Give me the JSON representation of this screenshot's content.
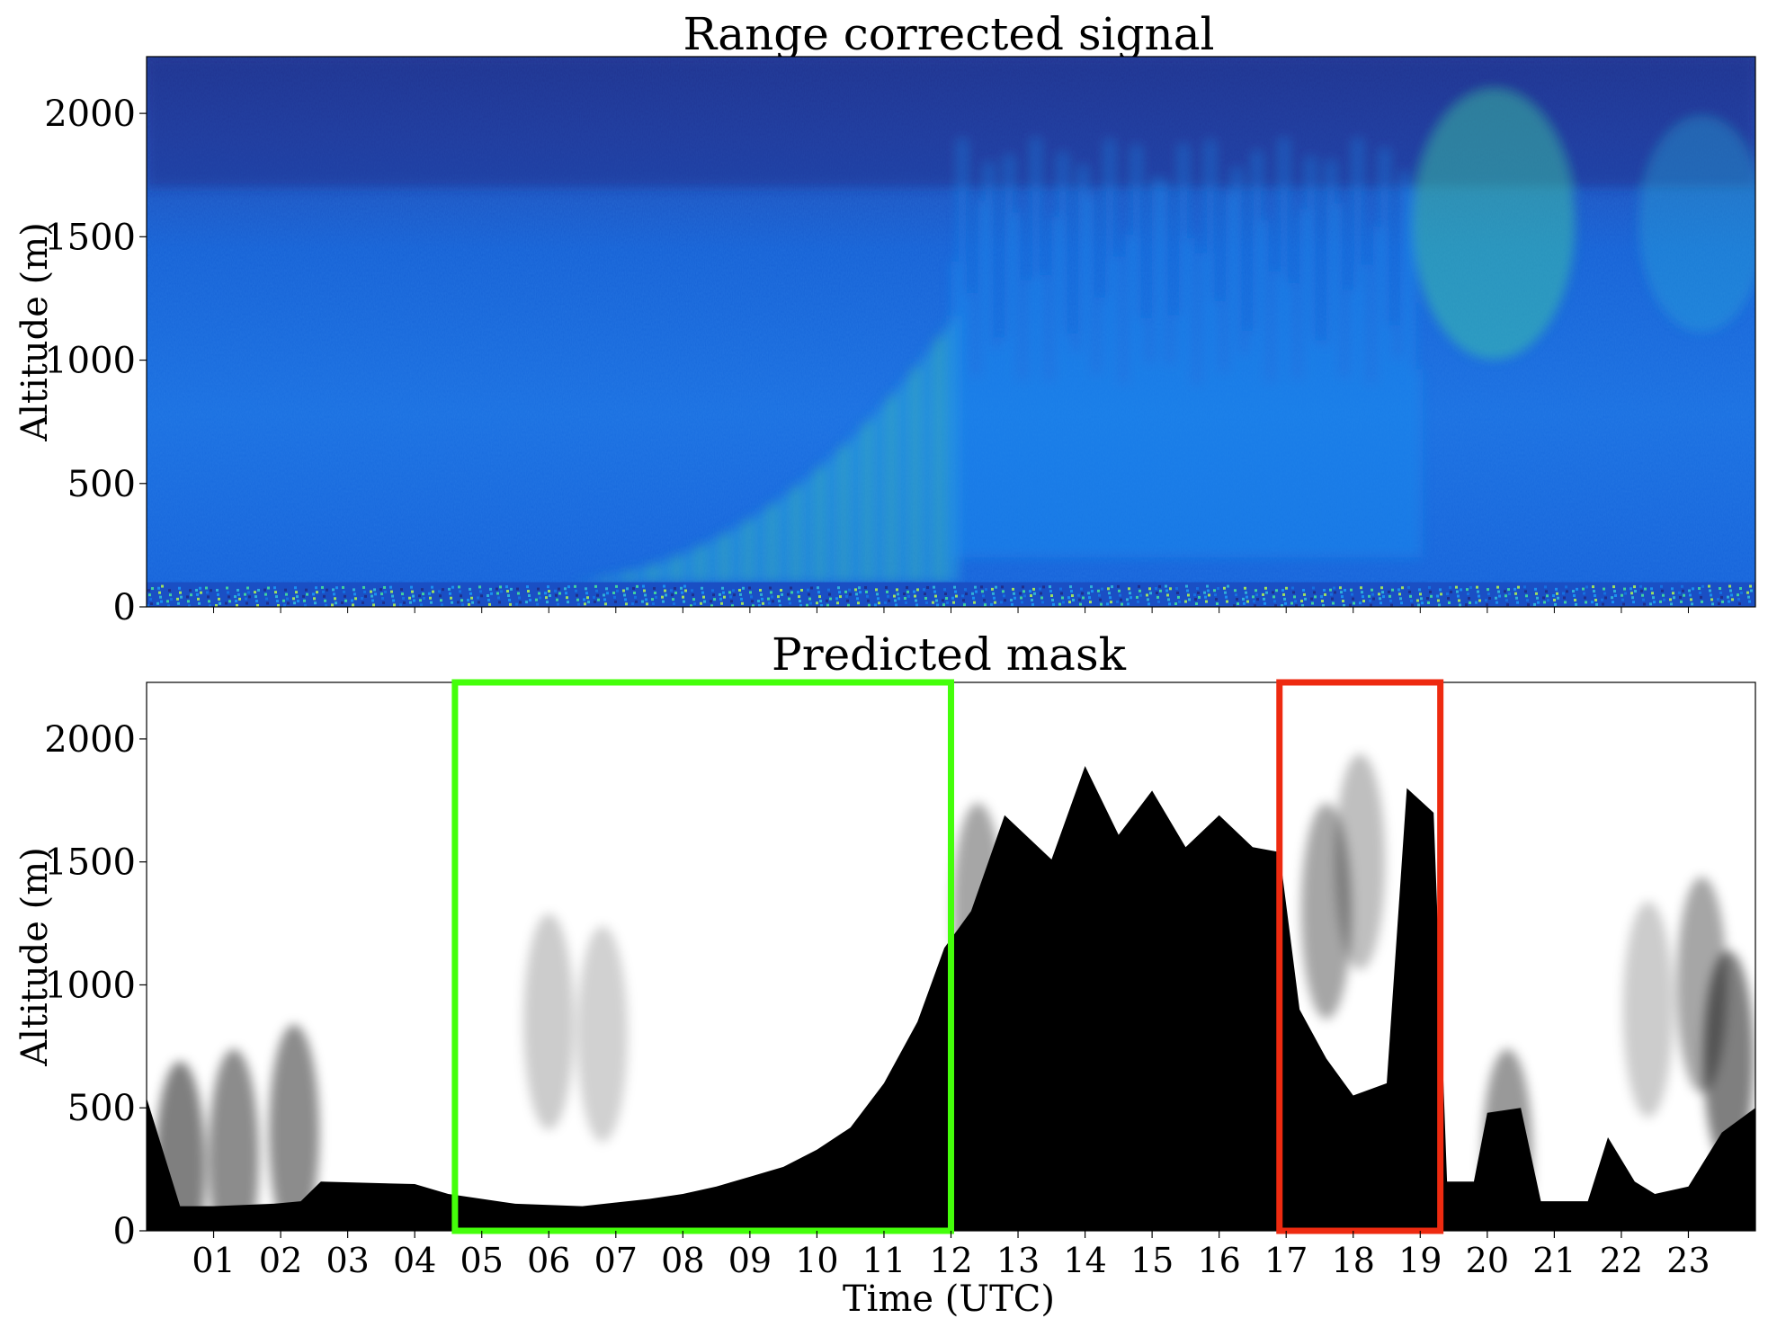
{
  "chart_data": [
    {
      "type": "heatmap",
      "title": "Range corrected signal",
      "xlabel": "",
      "ylabel": "Altitude (m)",
      "xlim": [
        0,
        24
      ],
      "ylim": [
        0,
        2230
      ],
      "yticks": [
        0,
        500,
        1000,
        1500,
        2000
      ],
      "colormap": [
        "#1e2f8c",
        "#1a4fc4",
        "#1570e0",
        "#1a90f0",
        "#2fb0d8",
        "#40d0a0",
        "#9ee060"
      ],
      "features": {
        "near_surface_noise_band_m": [
          0,
          100
        ],
        "morning_growing_layer_time_utc": [
          5,
          12
        ],
        "afternoon_plumes_top_m": 1900
      }
    },
    {
      "type": "heatmap",
      "title": "Predicted mask",
      "xlabel": "Time (UTC)",
      "ylabel": "Altitude (m)",
      "xlim": [
        0,
        24
      ],
      "ylim": [
        0,
        2230
      ],
      "yticks": [
        0,
        500,
        1000,
        1500,
        2000
      ],
      "xticks": [
        "01",
        "02",
        "03",
        "04",
        "05",
        "06",
        "07",
        "08",
        "09",
        "10",
        "11",
        "12",
        "13",
        "14",
        "15",
        "16",
        "17",
        "18",
        "19",
        "20",
        "21",
        "22",
        "23"
      ],
      "mask_top_profile": [
        {
          "t": 0.0,
          "h": 540
        },
        {
          "t": 0.5,
          "h": 100
        },
        {
          "t": 1.0,
          "h": 100
        },
        {
          "t": 1.9,
          "h": 110
        },
        {
          "t": 2.3,
          "h": 120
        },
        {
          "t": 2.6,
          "h": 200
        },
        {
          "t": 4.0,
          "h": 190
        },
        {
          "t": 4.5,
          "h": 150
        },
        {
          "t": 5.5,
          "h": 110
        },
        {
          "t": 6.5,
          "h": 100
        },
        {
          "t": 7.5,
          "h": 130
        },
        {
          "t": 8.0,
          "h": 150
        },
        {
          "t": 8.5,
          "h": 180
        },
        {
          "t": 9.0,
          "h": 220
        },
        {
          "t": 9.5,
          "h": 260
        },
        {
          "t": 10.0,
          "h": 330
        },
        {
          "t": 10.5,
          "h": 420
        },
        {
          "t": 11.0,
          "h": 600
        },
        {
          "t": 11.5,
          "h": 850
        },
        {
          "t": 11.9,
          "h": 1150
        },
        {
          "t": 12.3,
          "h": 1300
        },
        {
          "t": 12.8,
          "h": 1650
        },
        {
          "t": 13.5,
          "h": 1550
        },
        {
          "t": 14.0,
          "h": 1850
        },
        {
          "t": 14.5,
          "h": 1650
        },
        {
          "t": 15.0,
          "h": 1750
        },
        {
          "t": 15.5,
          "h": 1600
        },
        {
          "t": 16.0,
          "h": 1650
        },
        {
          "t": 16.5,
          "h": 1600
        },
        {
          "t": 16.9,
          "h": 1500
        },
        {
          "t": 17.2,
          "h": 900
        },
        {
          "t": 17.6,
          "h": 700
        },
        {
          "t": 18.0,
          "h": 550
        },
        {
          "t": 18.5,
          "h": 600
        },
        {
          "t": 18.8,
          "h": 1800
        },
        {
          "t": 19.2,
          "h": 1700
        },
        {
          "t": 19.4,
          "h": 200
        },
        {
          "t": 19.8,
          "h": 200
        },
        {
          "t": 20.0,
          "h": 480
        },
        {
          "t": 20.5,
          "h": 500
        },
        {
          "t": 20.8,
          "h": 120
        },
        {
          "t": 21.5,
          "h": 120
        },
        {
          "t": 21.8,
          "h": 380
        },
        {
          "t": 22.2,
          "h": 200
        },
        {
          "t": 22.5,
          "h": 150
        },
        {
          "t": 23.0,
          "h": 180
        },
        {
          "t": 23.5,
          "h": 400
        },
        {
          "t": 24.0,
          "h": 500
        }
      ],
      "annotations": [
        {
          "kind": "rectangle",
          "color": "#44ff0a",
          "x_range_utc": [
            4.6,
            12.0
          ],
          "y_range_m": [
            0,
            2230
          ]
        },
        {
          "kind": "rectangle",
          "color": "#ee2a10",
          "x_range_utc": [
            16.9,
            19.3
          ],
          "y_range_m": [
            0,
            2230
          ]
        }
      ]
    }
  ]
}
